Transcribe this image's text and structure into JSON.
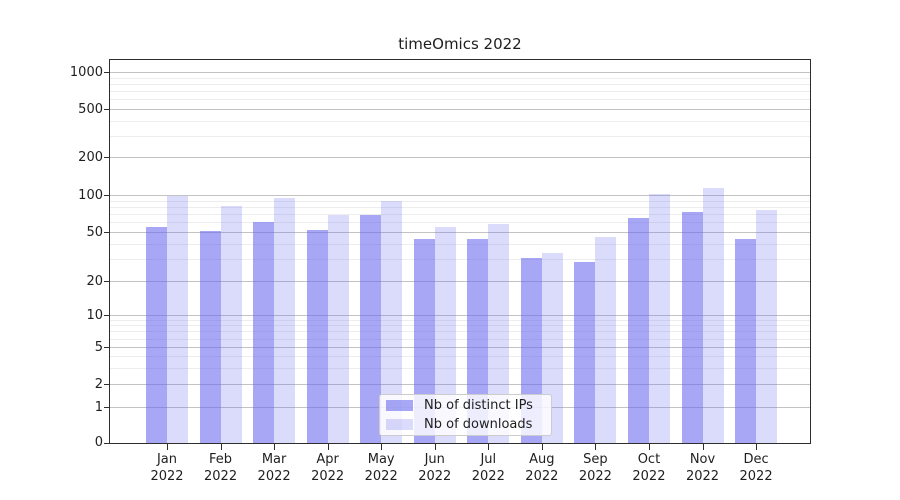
{
  "title": "timeOmics 2022",
  "chart_data": {
    "type": "bar",
    "title": "timeOmics 2022",
    "categories": [
      "Jan 2022",
      "Feb 2022",
      "Mar 2022",
      "Apr 2022",
      "May 2022",
      "Jun 2022",
      "Jul 2022",
      "Aug 2022",
      "Sep 2022",
      "Oct 2022",
      "Nov 2022",
      "Dec 2022"
    ],
    "months": [
      "Jan",
      "Feb",
      "Mar",
      "Apr",
      "May",
      "Jun",
      "Jul",
      "Aug",
      "Sep",
      "Oct",
      "Nov",
      "Dec"
    ],
    "year": "2022",
    "series": [
      {
        "name": "Nb of distinct IPs",
        "values": [
          55,
          51,
          61,
          52,
          69,
          44,
          44,
          31,
          29,
          66,
          73,
          44
        ]
      },
      {
        "name": "Nb of downloads",
        "values": [
          100,
          82,
          95,
          70,
          91,
          56,
          59,
          34,
          46,
          102,
          114,
          76
        ]
      }
    ],
    "xlabel": "",
    "ylabel": "",
    "yscale": "log-like (0,1,2,5,10,20,50,100,200,500,1000)",
    "y_ticks": [
      0,
      1,
      2,
      5,
      10,
      20,
      50,
      100,
      200,
      500,
      1000
    ],
    "y_minor_ticks": [
      3,
      4,
      6,
      7,
      8,
      9,
      30,
      40,
      60,
      70,
      80,
      90,
      300,
      400,
      600,
      700,
      800,
      900
    ],
    "ylim": [
      0,
      1200
    ],
    "grid": "horizontal major+minor",
    "legend_position": "lower center"
  },
  "colors": {
    "bar_distinct_ips": "rgba(103,103,238,0.58)",
    "bar_downloads": "rgba(103,103,238,0.24)",
    "grid_major": "#c3c3c3",
    "grid_minor": "#ededed",
    "axis": "#2e2e2e",
    "text": "#1f1f1f",
    "legend_border": "#cccccc"
  }
}
